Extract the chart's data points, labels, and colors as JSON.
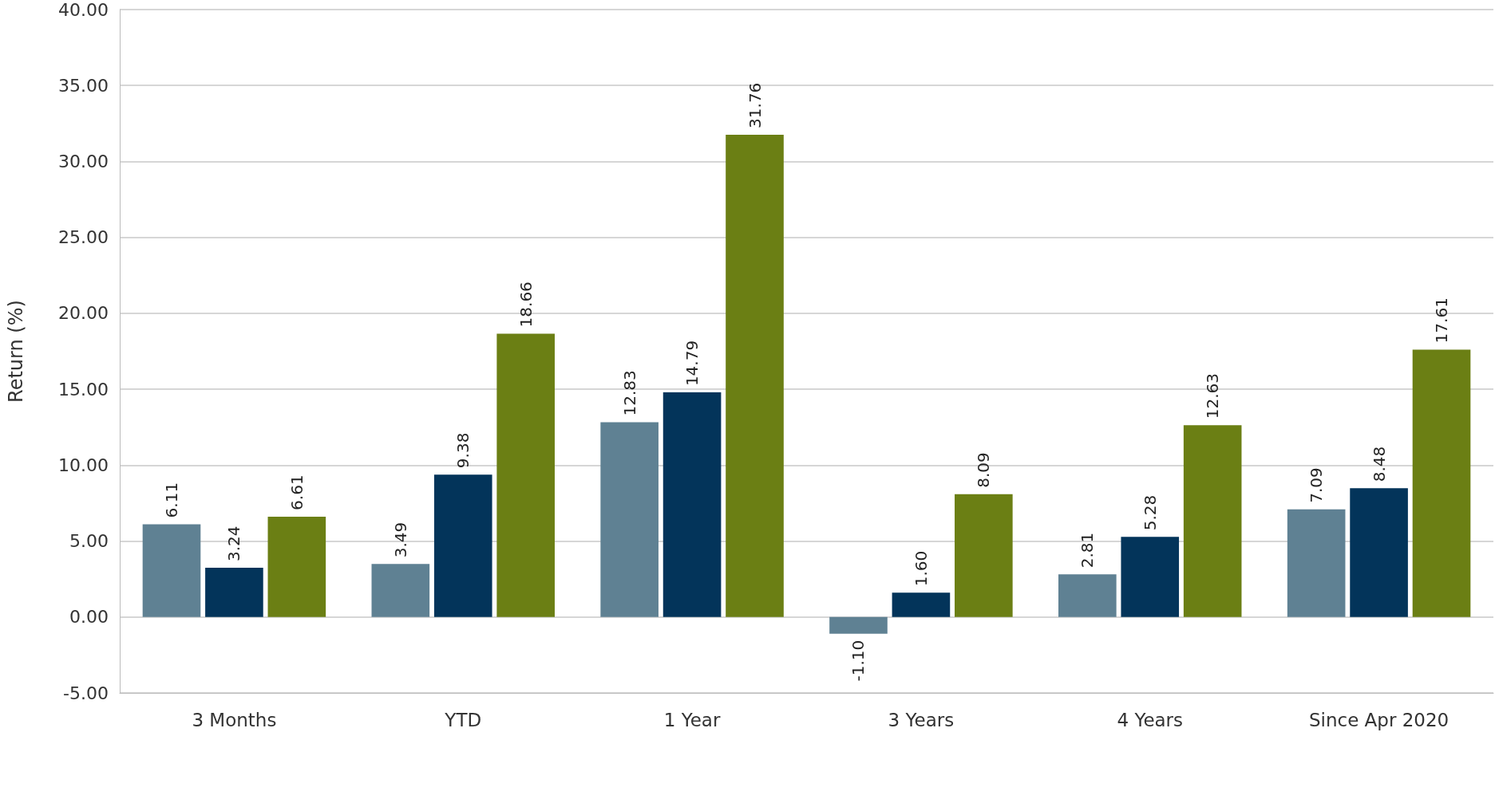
{
  "chart_data": {
    "type": "bar",
    "ylabel": "Return (%)",
    "categories": [
      "3 Months",
      "YTD",
      "1 Year",
      "3 Years",
      "4 Years",
      "Since Apr 2020"
    ],
    "series": [
      {
        "color": "#5f8193",
        "values": [
          6.11,
          3.49,
          12.83,
          -1.1,
          2.81,
          7.09
        ],
        "value_labels": [
          "6.11",
          "3.49",
          "12.83",
          "-1.10",
          "2.81",
          "7.09"
        ]
      },
      {
        "color": "#03345a",
        "values": [
          3.24,
          9.38,
          14.79,
          1.6,
          5.28,
          8.48
        ],
        "value_labels": [
          "3.24",
          "9.38",
          "14.79",
          "1.60",
          "5.28",
          "8.48"
        ]
      },
      {
        "color": "#6b7f14",
        "values": [
          6.61,
          18.66,
          31.76,
          8.09,
          12.63,
          17.61
        ],
        "value_labels": [
          "6.61",
          "18.66",
          "31.76",
          "8.09",
          "12.63",
          "17.61"
        ]
      }
    ],
    "ylim": [
      -5,
      40
    ],
    "yticks": [
      {
        "value": -5,
        "label": "-5.00"
      },
      {
        "value": 0,
        "label": "0.00"
      },
      {
        "value": 5,
        "label": "5.00"
      },
      {
        "value": 10,
        "label": "10.00"
      },
      {
        "value": 15,
        "label": "15.00"
      },
      {
        "value": 20,
        "label": "20.00"
      },
      {
        "value": 25,
        "label": "25.00"
      },
      {
        "value": 30,
        "label": "30.00"
      },
      {
        "value": 35,
        "label": "35.00"
      },
      {
        "value": 40,
        "label": "40.00"
      }
    ],
    "grid": "y"
  }
}
